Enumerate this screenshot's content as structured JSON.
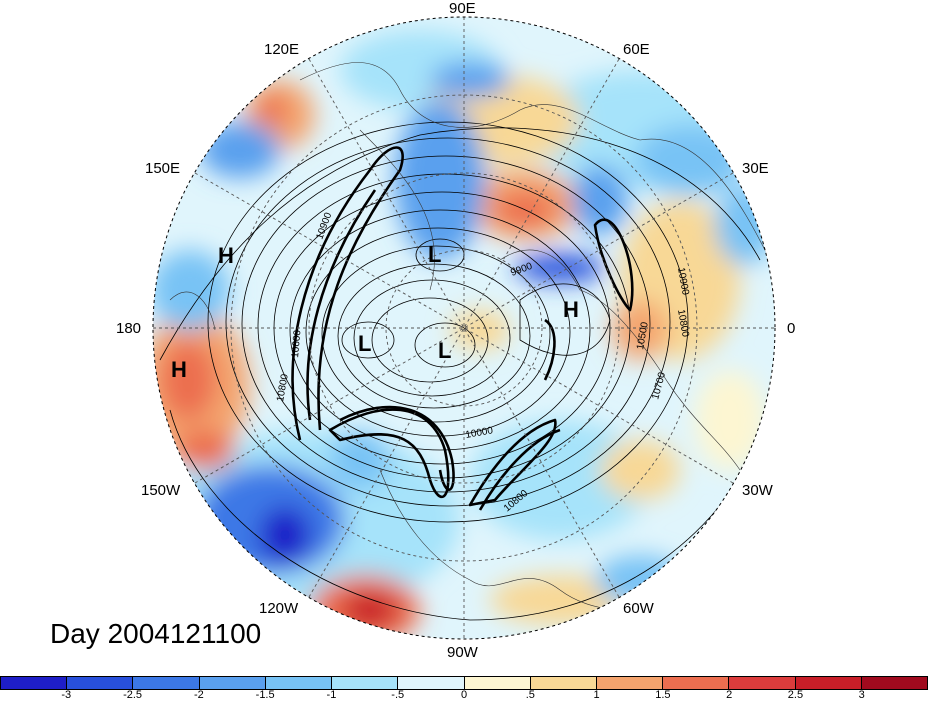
{
  "title": "Day 2004121100",
  "longitude_labels": {
    "e90": "90E",
    "e60": "60E",
    "e30": "30E",
    "zero": "0",
    "w30": "30W",
    "w60": "60W",
    "w90": "90W",
    "w120": "120W",
    "w150": "150W",
    "dateline": "180",
    "e150": "150E",
    "e120": "120E"
  },
  "pressure_centers": [
    {
      "label": "H",
      "region": "North Pacific near 165E"
    },
    {
      "label": "H",
      "region": "North Pacific near 160W"
    },
    {
      "label": "H",
      "region": "Europe"
    },
    {
      "label": "L",
      "region": "East Siberia"
    },
    {
      "label": "L",
      "region": "Alaska / Beaufort"
    },
    {
      "label": "L",
      "region": "Canadian Arctic"
    }
  ],
  "contour_labels": [
    "10900",
    "10600",
    "10800",
    "9900",
    "10900",
    "10800",
    "10500",
    "10700",
    "10000",
    "10800"
  ],
  "colorbar": {
    "ticks": [
      "-3",
      "-2.5",
      "-2",
      "-1.5",
      "-1",
      "-.5",
      "0",
      ".5",
      "1",
      "1.5",
      "2",
      "2.5",
      "3"
    ],
    "colors": [
      "#1e1ec8",
      "#2850dc",
      "#3c78e6",
      "#5aa0ee",
      "#78c3f5",
      "#a6e3fa",
      "#e0f5fc",
      "#fdf6d2",
      "#f8d896",
      "#f4a46e",
      "#ec6e50",
      "#dc3c3c",
      "#c81e28",
      "#a00a1e"
    ]
  }
}
